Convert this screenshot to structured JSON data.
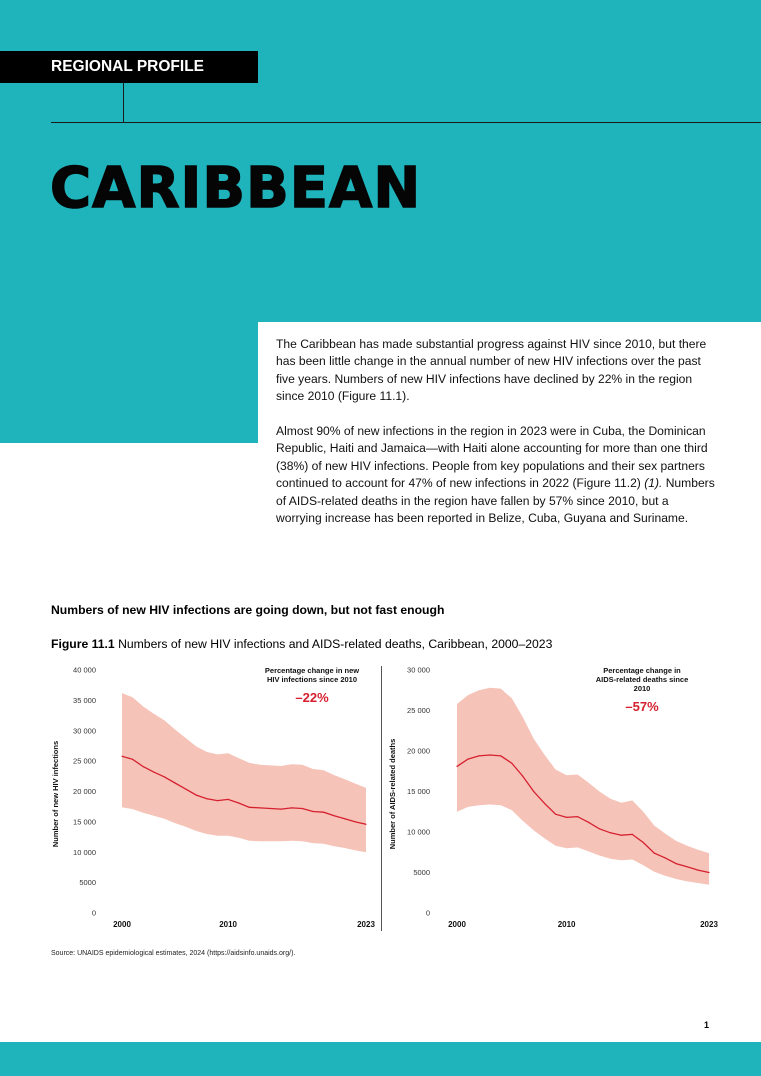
{
  "header": {
    "tag": "REGIONAL PROFILE",
    "title": "CARIBBEAN"
  },
  "intro": {
    "paragraph1": "The Caribbean has made substantial progress against HIV since 2010, but there has been little change in the annual number of new HIV infections over the past five years. Numbers of new HIV infections have declined by 22% in the region since 2010 (Figure 11.1).",
    "paragraph2_a": "Almost 90% of new infections in the region in 2023 were in Cuba, the Dominican Republic, Haiti and Jamaica—with Haiti alone accounting for more than one third (38%) of new HIV infections. People from key populations and their sex partners continued to account for 47% of new infections in 2022 (Figure 11.2) ",
    "paragraph2_cite": "(1).",
    "paragraph2_b": " Numbers of AIDS-related deaths in the region have fallen by 57% since 2010, but a worrying increase has been reported in Belize, Cuba, Guyana and Suriname."
  },
  "figure": {
    "headline": "Numbers of new HIV infections are going down, but not fast enough",
    "label": "Figure 11.1",
    "caption": "Numbers of new HIV infections and AIDS-related deaths, Caribbean, 2000–2023"
  },
  "colors": {
    "teal": "#1fb3bc",
    "line": "#d6202f",
    "band": "#f5c3b8",
    "annotation": "#d6202f"
  },
  "chart_data": [
    {
      "type": "line",
      "ylabel": "Number of new HIV infections",
      "xlabel": "",
      "annotation_title": "Percentage change in new HIV infections since 2010",
      "annotation_value": "–22%",
      "x": [
        2000,
        2001,
        2002,
        2003,
        2004,
        2005,
        2006,
        2007,
        2008,
        2009,
        2010,
        2011,
        2012,
        2013,
        2014,
        2015,
        2016,
        2017,
        2018,
        2019,
        2020,
        2021,
        2022,
        2023
      ],
      "xticks": [
        2000,
        2010,
        2023
      ],
      "xtick_labels": [
        "2000",
        "2010",
        "2023"
      ],
      "ylim": [
        0,
        40000
      ],
      "yticks": [
        0,
        5000,
        10000,
        15000,
        20000,
        25000,
        30000,
        35000,
        40000
      ],
      "ytick_labels": [
        "0",
        "5000",
        "10 000",
        "15 000",
        "20 000",
        "25 000",
        "30 000",
        "35 000",
        "40 000"
      ],
      "series": [
        {
          "values": [
            25800,
            25300,
            24100,
            23200,
            22400,
            21400,
            20400,
            19400,
            18800,
            18500,
            18700,
            18100,
            17400,
            17300,
            17200,
            17100,
            17300,
            17200,
            16700,
            16600,
            16000,
            15500,
            15000,
            14600
          ],
          "lower": [
            17400,
            17100,
            16500,
            16000,
            15500,
            14800,
            14200,
            13500,
            13000,
            12700,
            12700,
            12400,
            11900,
            11800,
            11800,
            11800,
            11900,
            11800,
            11500,
            11400,
            11000,
            10700,
            10300,
            10000
          ],
          "upper": [
            36200,
            35500,
            34000,
            32800,
            31700,
            30200,
            28800,
            27400,
            26500,
            26100,
            26300,
            25500,
            24700,
            24400,
            24300,
            24200,
            24500,
            24400,
            23700,
            23500,
            22700,
            22000,
            21300,
            20600
          ]
        }
      ]
    },
    {
      "type": "line",
      "ylabel": "Number of AIDS-related deaths",
      "xlabel": "",
      "annotation_title": "Percentage change in AIDS-related deaths since 2010",
      "annotation_value": "–57%",
      "x": [
        2000,
        2001,
        2002,
        2003,
        2004,
        2005,
        2006,
        2007,
        2008,
        2009,
        2010,
        2011,
        2012,
        2013,
        2014,
        2015,
        2016,
        2017,
        2018,
        2019,
        2020,
        2021,
        2022,
        2023
      ],
      "xticks": [
        2000,
        2010,
        2023
      ],
      "xtick_labels": [
        "2000",
        "2010",
        "2023"
      ],
      "ylim": [
        0,
        30000
      ],
      "yticks": [
        0,
        5000,
        10000,
        15000,
        20000,
        25000,
        30000
      ],
      "ytick_labels": [
        "0",
        "5000",
        "10 000",
        "15 000",
        "20 000",
        "25 000",
        "30 000"
      ],
      "series": [
        {
          "values": [
            18100,
            19000,
            19400,
            19500,
            19400,
            18500,
            16900,
            15000,
            13500,
            12200,
            11800,
            11900,
            11200,
            10400,
            9900,
            9600,
            9700,
            8700,
            7400,
            6800,
            6100,
            5700,
            5300,
            5000
          ],
          "lower": [
            12500,
            13100,
            13300,
            13400,
            13300,
            12700,
            11400,
            10200,
            9200,
            8300,
            8000,
            8100,
            7600,
            7100,
            6700,
            6500,
            6600,
            5900,
            5100,
            4600,
            4200,
            3900,
            3700,
            3500
          ],
          "upper": [
            25800,
            26900,
            27500,
            27800,
            27700,
            26500,
            24200,
            21500,
            19500,
            17700,
            17000,
            17100,
            16100,
            15000,
            14100,
            13600,
            13900,
            12500,
            10800,
            9800,
            8900,
            8300,
            7800,
            7400
          ]
        }
      ]
    }
  ],
  "source": "Source: UNAIDS epidemiological estimates, 2024 (https://aidsinfo.unaids.org/).",
  "page_number": "1"
}
